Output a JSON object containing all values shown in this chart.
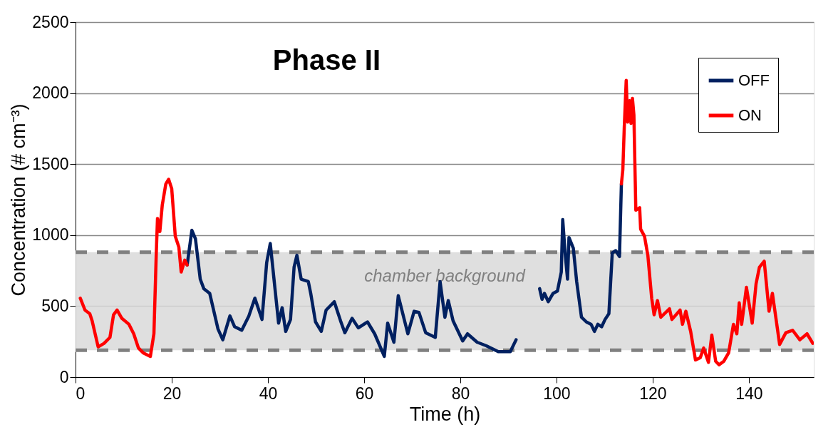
{
  "chart_data": {
    "type": "line",
    "title": "Phase II",
    "xlabel": "Time (h)",
    "ylabel": "Concentration (# cm⁻³)",
    "xlim": [
      0,
      153.5
    ],
    "xticks": [
      0,
      20,
      40,
      60,
      80,
      100,
      120,
      140
    ],
    "ylim": [
      0,
      2500
    ],
    "yticks": [
      0,
      500,
      {
        "value": 1000,
        "label": "1000"
      },
      {
        "value": 1500,
        "label": "1500"
      },
      {
        "value": 2000,
        "label": "2000"
      },
      {
        "value": 2500,
        "label": "2500"
      }
    ],
    "grid": "y",
    "legend": "top right",
    "line_style": "solid",
    "marker": "none",
    "bands": [
      {
        "axis": "y",
        "from": 190,
        "to": 880,
        "label": "chamber background",
        "color": "#d9d9d9"
      }
    ],
    "ref_lines": [
      {
        "axis": "y",
        "value": 190,
        "color": "#808080",
        "line_style": "dashed"
      },
      {
        "axis": "y",
        "value": 880,
        "color": "#808080",
        "line_style": "dashed"
      }
    ],
    "series": [
      {
        "name": "OFF",
        "color": "#002060",
        "x": [
          23.21,
          24.19,
          24.93,
          25.93,
          26.67,
          27.9,
          29.63,
          30.62,
          32.1,
          33.08,
          34.56,
          36.04,
          37.29,
          38.77,
          39.75,
          40.49,
          42.22,
          42.96,
          43.7,
          44.7,
          45.44,
          46.03,
          46.92,
          48.4,
          48.9,
          49.9,
          51.1,
          52.1,
          53.8,
          55.1,
          56.0,
          57.5,
          58.8,
          60.7,
          62.2,
          64.2,
          64.9,
          66.2,
          67.1,
          69.1,
          70.4,
          71.4,
          72.8,
          74.8,
          75.8,
          76.8,
          77.5,
          78.5,
          80.5,
          81.5,
          83.5,
          85.4,
          87.9,
          90.4,
          91.6,
          94.0,
          96.5,
          97.0,
          97.5,
          98.3,
          99.3,
          100.2,
          101.0,
          101.3,
          101.8,
          102.3,
          102.6,
          103.5,
          104.2,
          105.2,
          106.2,
          107.2,
          107.9,
          108.6,
          109.4,
          110.1,
          110.9,
          111.6,
          112.3,
          113.1,
          113.5
        ],
        "values": [
          790,
          1034,
          975,
          690,
          623,
          590,
          338,
          263,
          431,
          355,
          330,
          431,
          556,
          406,
          808,
          941,
          380,
          489,
          322,
          406,
          774,
          858,
          690,
          673,
          590,
          389,
          322,
          472,
          531,
          397,
          313,
          414,
          347,
          389,
          305,
          146,
          380,
          246,
          573,
          305,
          464,
          456,
          313,
          280,
          673,
          422,
          539,
          397,
          255,
          305,
          246,
          221,
          179,
          179,
          263,
          null,
          623,
          548,
          590,
          531,
          590,
          606,
          740,
          1109,
          874,
          690,
          983,
          908,
          673,
          422,
          389,
          372,
          322,
          372,
          355,
          406,
          447,
          874,
          891,
          849,
          1360
        ]
      },
      {
        "name": "ON",
        "color": "#ff0000",
        "x": [
          0.99,
          1.97,
          2.96,
          3.45,
          4.7,
          5.93,
          7.16,
          7.9,
          8.64,
          9.63,
          11.11,
          12.1,
          13.08,
          14.07,
          15.56,
          16.3,
          16.79,
          17.04,
          17.53,
          18.03,
          18.77,
          19.36,
          20.0,
          20.74,
          21.48,
          21.97,
          22.71,
          23.21,
          60.0,
          113.5,
          113.8,
          114.1,
          114.5,
          114.8,
          115.2,
          115.5,
          115.8,
          116.1,
          116.5,
          117.3,
          117.5,
          118.3,
          119.0,
          119.8,
          120.3,
          121.0,
          121.7,
          123.5,
          124.0,
          125.7,
          126.2,
          126.9,
          127.9,
          128.9,
          129.9,
          130.6,
          131.6,
          132.3,
          133.1,
          133.8,
          134.8,
          135.8,
          136.8,
          137.5,
          138.0,
          138.5,
          139.5,
          140.7,
          141.5,
          142.2,
          143.2,
          144.2,
          144.9,
          146.4,
          147.7,
          149.1,
          150.6,
          152.1,
          153.3
        ],
        "values": [
          556,
          472,
          447,
          397,
          213,
          238,
          280,
          439,
          472,
          414,
          372,
          305,
          205,
          171,
          146,
          306,
          874,
          1117,
          1025,
          1210,
          1360,
          1393,
          1327,
          992,
          916,
          740,
          824,
          790,
          null,
          1360,
          1461,
          1762,
          2089,
          1796,
          1946,
          1787,
          1963,
          1846,
          1176,
          1193,
          1042,
          992,
          858,
          556,
          439,
          539,
          422,
          481,
          406,
          472,
          372,
          464,
          322,
          121,
          137,
          205,
          104,
          296,
          112,
          87,
          112,
          171,
          372,
          305,
          523,
          372,
          632,
          380,
          657,
          774,
          816,
          464,
          590,
          230,
          313,
          330,
          263,
          305,
          238
        ]
      }
    ]
  }
}
